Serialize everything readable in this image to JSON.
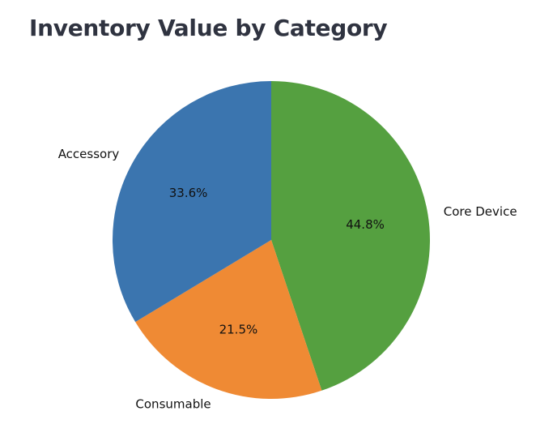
{
  "chart_data": {
    "type": "pie",
    "title": "Inventory Value by Category",
    "categories": [
      "Core Device",
      "Consumable",
      "Accessory"
    ],
    "values": [
      44.8,
      21.5,
      33.6
    ],
    "value_labels": [
      "44.8%",
      "21.5%",
      "33.6%"
    ],
    "colors": [
      "#55a040",
      "#ef8a34",
      "#3b75af"
    ],
    "start_angle_deg": 90,
    "direction": "clockwise",
    "legend": "none"
  }
}
